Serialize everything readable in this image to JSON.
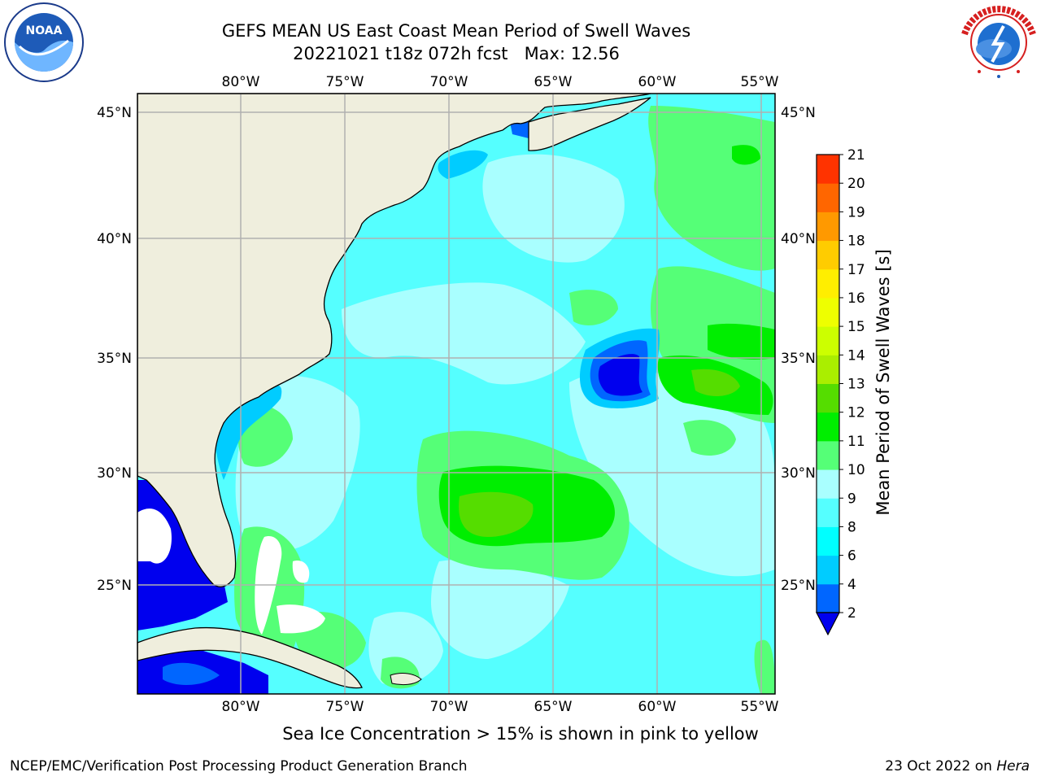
{
  "title": {
    "line1": "GEFS MEAN US East Coast Mean Period of Swell Waves",
    "line2": "20221021 t18z 072h fcst   Max: 12.56"
  },
  "logos": {
    "left": {
      "name": "NOAA",
      "ring_text": "NATIONAL OCEANIC AND ATMOSPHERIC ADMINISTRATION · U.S. DEPARTMENT OF COMMERCE",
      "icon": "noaa-logo"
    },
    "right": {
      "name": "NATIONAL WEATHER SERVICE",
      "icon": "nws-logo"
    }
  },
  "map": {
    "lon_labels": [
      "80°W",
      "75°W",
      "70°W",
      "65°W",
      "60°W",
      "55°W"
    ],
    "lat_labels": [
      "45°N",
      "40°N",
      "35°N",
      "30°N",
      "25°N"
    ],
    "lon_range": [
      -85,
      -54.4
    ],
    "lat_range": [
      20.3,
      45.8
    ],
    "land_color": "#efeedd",
    "coast_color": "#000000",
    "grid_color": "#b0b0b0"
  },
  "colorbar": {
    "label": "Mean Period of Swell Waves [s]",
    "ticks": [
      "2",
      "4",
      "6",
      "8",
      "9",
      "10",
      "11",
      "12",
      "13",
      "14",
      "15",
      "16",
      "17",
      "18",
      "19",
      "20",
      "21"
    ],
    "colors": [
      "#0066ff",
      "#00ccff",
      "#00ffff",
      "#55ffff",
      "#a9ffff",
      "#55ff77",
      "#00ee00",
      "#55dd00",
      "#aaee00",
      "#ccff00",
      "#eeff00",
      "#ffee00",
      "#ffcc00",
      "#ff9900",
      "#ff6600",
      "#ff3300"
    ],
    "extend_color": "#0000ee"
  },
  "footnote": "Sea Ice Concentration > 15% is shown in pink to yellow",
  "footer": {
    "left": "NCEP/EMC/Verification Post Processing Product Generation Branch",
    "right_prefix": "23 Oct 2022 on ",
    "right_host": "Hera"
  }
}
